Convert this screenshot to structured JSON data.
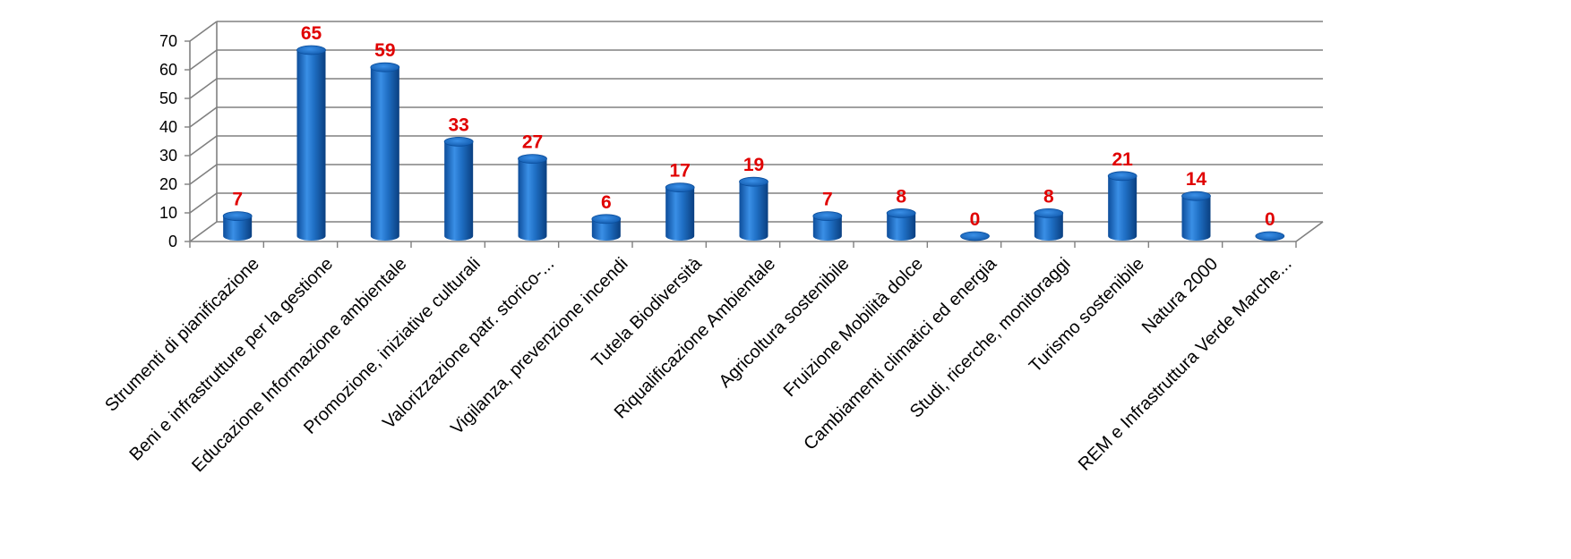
{
  "chart_data": {
    "type": "bar",
    "style": "3d-cylinder",
    "categories": [
      "Strumenti di pianificazione",
      "Beni e infrastrutture per la gestione",
      "Educazione Informazione ambientale",
      "Promozione, iniziative culturali",
      "Valorizzazione patr. storico-...",
      "Vigilanza, prevenzione incendi",
      "Tutela Biodiversità",
      "Riqualificazione Ambientale",
      "Agricoltura sostenibile",
      "Fruizione Mobilità dolce",
      "Cambiamenti climatici ed energia",
      "Studi, ricerche, monitoraggi",
      "Turismo sostenibile",
      "Natura 2000",
      "REM e Infrastruttura Verde Marche..."
    ],
    "values": [
      7,
      65,
      59,
      33,
      27,
      6,
      17,
      19,
      7,
      8,
      0,
      8,
      21,
      14,
      0
    ],
    "ylim": [
      0,
      70
    ],
    "yticks": [
      0,
      10,
      20,
      30,
      40,
      50,
      60,
      70
    ],
    "grid": true,
    "legend": "none",
    "colors": {
      "bar": "#1f6fc4",
      "data_label": "#e00000",
      "grid": "#808080"
    }
  }
}
